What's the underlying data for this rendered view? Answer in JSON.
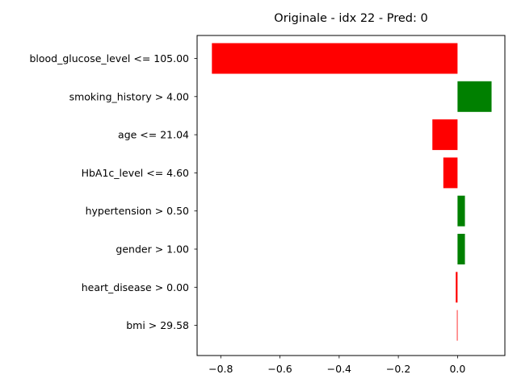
{
  "chart_data": {
    "type": "bar",
    "orientation": "horizontal",
    "title": "Originale - idx 22 - Pred: 0",
    "xlabel": "",
    "ylabel": "",
    "xlim": [
      -0.88,
      0.16
    ],
    "xticks": [
      -0.8,
      -0.6,
      -0.4,
      -0.2,
      0.0
    ],
    "xtick_labels": [
      "−0.8",
      "−0.6",
      "−0.4",
      "−0.2",
      "0.0"
    ],
    "grid": false,
    "categories": [
      "blood_glucose_level <= 105.00",
      "smoking_history > 4.00",
      "age <= 21.04",
      "HbA1c_level <= 4.60",
      "hypertension > 0.50",
      "gender > 1.00",
      "heart_disease > 0.00",
      "bmi > 29.58"
    ],
    "values": [
      -0.83,
      0.115,
      -0.085,
      -0.048,
      0.025,
      0.025,
      -0.006,
      -0.002
    ],
    "colors": {
      "positive": "#008000",
      "negative": "#ff0000"
    }
  }
}
